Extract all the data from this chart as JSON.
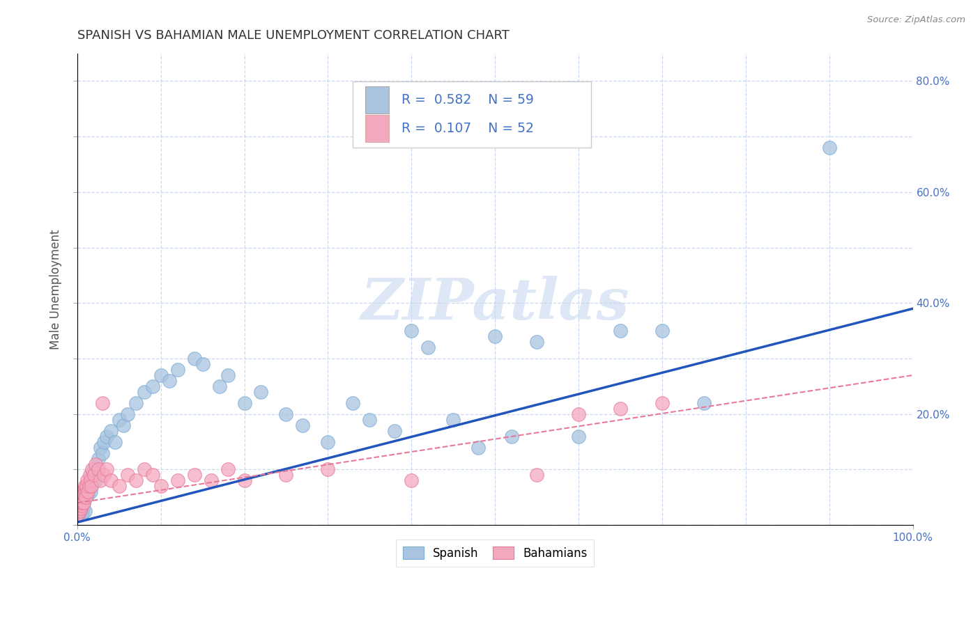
{
  "title": "SPANISH VS BAHAMIAN MALE UNEMPLOYMENT CORRELATION CHART",
  "source": "Source: ZipAtlas.com",
  "ylabel": "Male Unemployment",
  "xlim": [
    0,
    1.0
  ],
  "ylim": [
    0,
    0.85
  ],
  "blue_color": "#a8c4e0",
  "blue_edge_color": "#7baad4",
  "pink_color": "#f4a8be",
  "pink_edge_color": "#e87898",
  "blue_line_color": "#2255bb",
  "pink_line_color": "#e87898",
  "grid_color": "#c8d8ee",
  "tick_label_color": "#4472c4",
  "title_color": "#333333",
  "source_color": "#888888",
  "watermark_color": "#c8d8f0",
  "sp_trend": [
    0.005,
    0.39
  ],
  "bah_trend": [
    0.04,
    0.27
  ],
  "spanish_x": [
    0.002,
    0.003,
    0.004,
    0.005,
    0.006,
    0.006,
    0.007,
    0.008,
    0.009,
    0.01,
    0.011,
    0.012,
    0.013,
    0.015,
    0.016,
    0.017,
    0.018,
    0.02,
    0.022,
    0.025,
    0.028,
    0.03,
    0.032,
    0.035,
    0.04,
    0.045,
    0.05,
    0.055,
    0.06,
    0.07,
    0.08,
    0.09,
    0.1,
    0.11,
    0.12,
    0.14,
    0.15,
    0.17,
    0.18,
    0.2,
    0.22,
    0.25,
    0.27,
    0.3,
    0.33,
    0.35,
    0.38,
    0.4,
    0.42,
    0.45,
    0.48,
    0.5,
    0.52,
    0.55,
    0.6,
    0.65,
    0.7,
    0.75,
    0.9
  ],
  "spanish_y": [
    0.02,
    0.03,
    0.025,
    0.04,
    0.02,
    0.05,
    0.03,
    0.04,
    0.025,
    0.05,
    0.06,
    0.07,
    0.055,
    0.08,
    0.06,
    0.07,
    0.09,
    0.1,
    0.08,
    0.12,
    0.14,
    0.13,
    0.15,
    0.16,
    0.17,
    0.15,
    0.19,
    0.18,
    0.2,
    0.22,
    0.24,
    0.25,
    0.27,
    0.26,
    0.28,
    0.3,
    0.29,
    0.25,
    0.27,
    0.22,
    0.24,
    0.2,
    0.18,
    0.15,
    0.22,
    0.19,
    0.17,
    0.35,
    0.32,
    0.19,
    0.14,
    0.34,
    0.16,
    0.33,
    0.16,
    0.35,
    0.35,
    0.22,
    0.68
  ],
  "bahamian_x": [
    0.001,
    0.002,
    0.002,
    0.003,
    0.003,
    0.004,
    0.004,
    0.005,
    0.005,
    0.006,
    0.006,
    0.007,
    0.007,
    0.008,
    0.008,
    0.009,
    0.01,
    0.01,
    0.011,
    0.012,
    0.013,
    0.014,
    0.015,
    0.016,
    0.017,
    0.018,
    0.02,
    0.022,
    0.025,
    0.028,
    0.03,
    0.032,
    0.035,
    0.04,
    0.05,
    0.06,
    0.07,
    0.08,
    0.09,
    0.1,
    0.12,
    0.14,
    0.16,
    0.18,
    0.2,
    0.25,
    0.3,
    0.4,
    0.55,
    0.6,
    0.65,
    0.7
  ],
  "bahamian_y": [
    0.02,
    0.03,
    0.04,
    0.025,
    0.05,
    0.03,
    0.04,
    0.05,
    0.035,
    0.06,
    0.04,
    0.05,
    0.06,
    0.04,
    0.055,
    0.07,
    0.06,
    0.05,
    0.07,
    0.08,
    0.06,
    0.07,
    0.09,
    0.08,
    0.07,
    0.1,
    0.09,
    0.11,
    0.1,
    0.08,
    0.22,
    0.09,
    0.1,
    0.08,
    0.07,
    0.09,
    0.08,
    0.1,
    0.09,
    0.07,
    0.08,
    0.09,
    0.08,
    0.1,
    0.08,
    0.09,
    0.1,
    0.08,
    0.09,
    0.2,
    0.21,
    0.22
  ]
}
